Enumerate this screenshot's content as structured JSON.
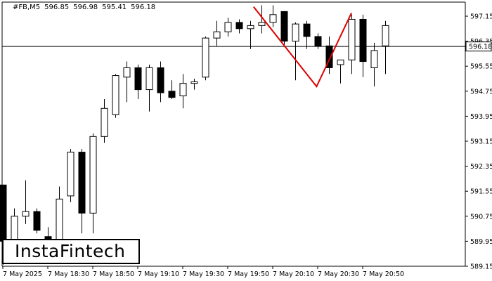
{
  "header": {
    "symbol": "#FB,M5",
    "open": "596.85",
    "high": "596.98",
    "low": "595.41",
    "close": "596.18"
  },
  "brand": {
    "logo_text": "InstaFintech"
  },
  "chart_data": {
    "type": "candlestick",
    "title": "",
    "xlabel": "",
    "ylabel": "",
    "ylim": [
      589.15,
      597.6
    ],
    "y_ticks": [
      "597.15",
      "596.35",
      "595.55",
      "594.75",
      "593.95",
      "593.15",
      "592.35",
      "591.55",
      "590.75",
      "589.95",
      "589.15"
    ],
    "x_ticks": [
      {
        "label": "7 May 2025",
        "index": 0
      },
      {
        "label": "7 May 18:30",
        "index": 4
      },
      {
        "label": "7 May 18:50",
        "index": 8
      },
      {
        "label": "7 May 19:10",
        "index": 12
      },
      {
        "label": "7 May 19:30",
        "index": 16
      },
      {
        "label": "7 May 19:50",
        "index": 20
      },
      {
        "label": "7 May 20:10",
        "index": 24
      },
      {
        "label": "7 May 20:30",
        "index": 28
      },
      {
        "label": "7 May 20:50",
        "index": 32
      }
    ],
    "current_price": 596.18,
    "current_price_label": "596.18",
    "candles": [
      {
        "o": 591.75,
        "h": 591.75,
        "l": 589.2,
        "c": 589.95
      },
      {
        "o": 590.0,
        "h": 591.0,
        "l": 589.8,
        "c": 590.75
      },
      {
        "o": 590.75,
        "h": 591.9,
        "l": 590.5,
        "c": 590.9
      },
      {
        "o": 590.9,
        "h": 591.0,
        "l": 590.2,
        "c": 590.3
      },
      {
        "o": 590.1,
        "h": 590.4,
        "l": 589.5,
        "c": 589.9
      },
      {
        "o": 590.0,
        "h": 591.7,
        "l": 589.9,
        "c": 591.3
      },
      {
        "o": 591.4,
        "h": 592.9,
        "l": 591.2,
        "c": 592.8
      },
      {
        "o": 592.8,
        "h": 592.9,
        "l": 590.2,
        "c": 590.85
      },
      {
        "o": 590.85,
        "h": 593.4,
        "l": 590.2,
        "c": 593.3
      },
      {
        "o": 593.3,
        "h": 594.5,
        "l": 593.1,
        "c": 594.2
      },
      {
        "o": 594.0,
        "h": 595.3,
        "l": 593.9,
        "c": 595.25
      },
      {
        "o": 595.2,
        "h": 595.7,
        "l": 594.4,
        "c": 595.5
      },
      {
        "o": 595.5,
        "h": 595.6,
        "l": 594.5,
        "c": 594.8
      },
      {
        "o": 594.8,
        "h": 595.6,
        "l": 594.1,
        "c": 595.5
      },
      {
        "o": 595.5,
        "h": 595.7,
        "l": 594.4,
        "c": 594.7
      },
      {
        "o": 594.75,
        "h": 595.1,
        "l": 594.5,
        "c": 594.55
      },
      {
        "o": 594.6,
        "h": 595.3,
        "l": 594.2,
        "c": 595.0
      },
      {
        "o": 595.0,
        "h": 595.15,
        "l": 594.8,
        "c": 595.05
      },
      {
        "o": 595.2,
        "h": 596.5,
        "l": 595.1,
        "c": 596.45
      },
      {
        "o": 596.45,
        "h": 597.0,
        "l": 596.2,
        "c": 596.65
      },
      {
        "o": 596.65,
        "h": 597.1,
        "l": 596.5,
        "c": 596.95
      },
      {
        "o": 596.95,
        "h": 597.05,
        "l": 596.6,
        "c": 596.75
      },
      {
        "o": 596.75,
        "h": 597.0,
        "l": 596.1,
        "c": 596.85
      },
      {
        "o": 596.85,
        "h": 597.5,
        "l": 596.6,
        "c": 596.95
      },
      {
        "o": 596.95,
        "h": 597.5,
        "l": 596.8,
        "c": 597.2
      },
      {
        "o": 597.3,
        "h": 597.3,
        "l": 596.2,
        "c": 596.35
      },
      {
        "o": 596.35,
        "h": 596.95,
        "l": 595.1,
        "c": 596.9
      },
      {
        "o": 596.9,
        "h": 597.0,
        "l": 596.1,
        "c": 596.5
      },
      {
        "o": 596.5,
        "h": 596.6,
        "l": 596.1,
        "c": 596.2
      },
      {
        "o": 596.2,
        "h": 596.5,
        "l": 595.3,
        "c": 595.5
      },
      {
        "o": 595.6,
        "h": 595.75,
        "l": 595.0,
        "c": 595.75
      },
      {
        "o": 595.75,
        "h": 597.2,
        "l": 595.3,
        "c": 597.05
      },
      {
        "o": 597.05,
        "h": 597.2,
        "l": 595.2,
        "c": 595.7
      },
      {
        "o": 595.5,
        "h": 596.3,
        "l": 594.9,
        "c": 596.05
      },
      {
        "o": 596.2,
        "h": 597.0,
        "l": 595.3,
        "c": 596.85
      }
    ],
    "pattern": {
      "name": "",
      "color": "#dd0000",
      "points": [
        {
          "index": 22.3,
          "price": 597.45
        },
        {
          "index": 27.9,
          "price": 594.9
        },
        {
          "index": 31.0,
          "price": 597.25
        }
      ]
    }
  },
  "colors": {
    "bull_body": "#ffffff",
    "bear_body": "#000000",
    "outline": "#000000",
    "pattern": "#dd0000",
    "axis_text": "#000000"
  }
}
